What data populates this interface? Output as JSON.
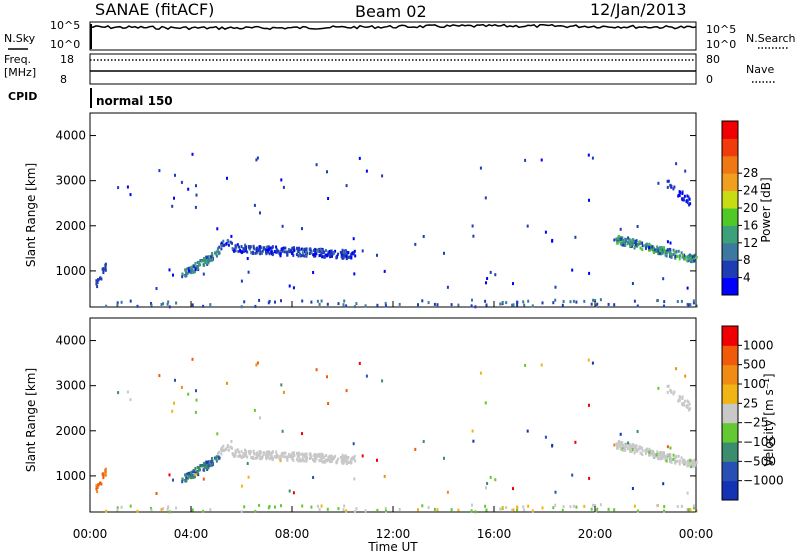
{
  "header": {
    "station": "SANAE (fitACF)",
    "beam": "Beam 02",
    "date": "12/Jan/2013"
  },
  "top_panel": {
    "left_label": "N.Sky",
    "right_label": "N.Search",
    "left_ticks": [
      "10^5",
      "10^0"
    ],
    "right_ticks": [
      "10^5",
      "10^0"
    ]
  },
  "freq_panel": {
    "left_label_1": "Freq.",
    "left_label_2": "[MHz]",
    "right_label": "Nave",
    "left_ticks": [
      "18",
      "8"
    ],
    "right_ticks": [
      "80",
      "0"
    ]
  },
  "cpid_panel": {
    "label": "CPID",
    "mode": "normal 150"
  },
  "chart_data": [
    {
      "type": "heatmap",
      "name": "power",
      "ylabel": "Slant Range [km]",
      "xlabel": "Time UT",
      "xlim": [
        0,
        24
      ],
      "ylim": [
        200,
        4500
      ],
      "y_ticks": [
        "1000",
        "2000",
        "3000",
        "4000"
      ],
      "x_ticks": [
        "00:00",
        "04:00",
        "08:00",
        "12:00",
        "16:00",
        "20:00",
        "00:00"
      ],
      "colorbar": {
        "label": "Power [dB]",
        "ticks": [
          "4",
          "8",
          "12",
          "16",
          "20",
          "24",
          "28"
        ],
        "colors": [
          "#0000ff",
          "#1e3cb4",
          "#3c78a0",
          "#3ca078",
          "#50c828",
          "#c8dc14",
          "#f0a01e",
          "#f07814",
          "#f03c0a",
          "#f00000"
        ]
      }
    },
    {
      "type": "heatmap",
      "name": "velocity",
      "ylabel": "Slant Range [km]",
      "xlabel": "Time UT",
      "xlim": [
        0,
        24
      ],
      "ylim": [
        200,
        4500
      ],
      "y_ticks": [
        "1000",
        "2000",
        "3000",
        "4000"
      ],
      "x_ticks": [
        "00:00",
        "04:00",
        "08:00",
        "12:00",
        "16:00",
        "20:00",
        "00:00"
      ],
      "colorbar": {
        "label": "Velocity [m s⁻¹]",
        "ticks": [
          "1000",
          "500",
          "100",
          "25",
          "−25",
          "−100",
          "−500",
          "−1000"
        ],
        "colors": [
          "#1432b4",
          "#2850b4",
          "#3c8c6e",
          "#64c832",
          "#c8c8c8",
          "#f0b414",
          "#f08c14",
          "#f05a0a",
          "#f00000"
        ]
      }
    }
  ]
}
